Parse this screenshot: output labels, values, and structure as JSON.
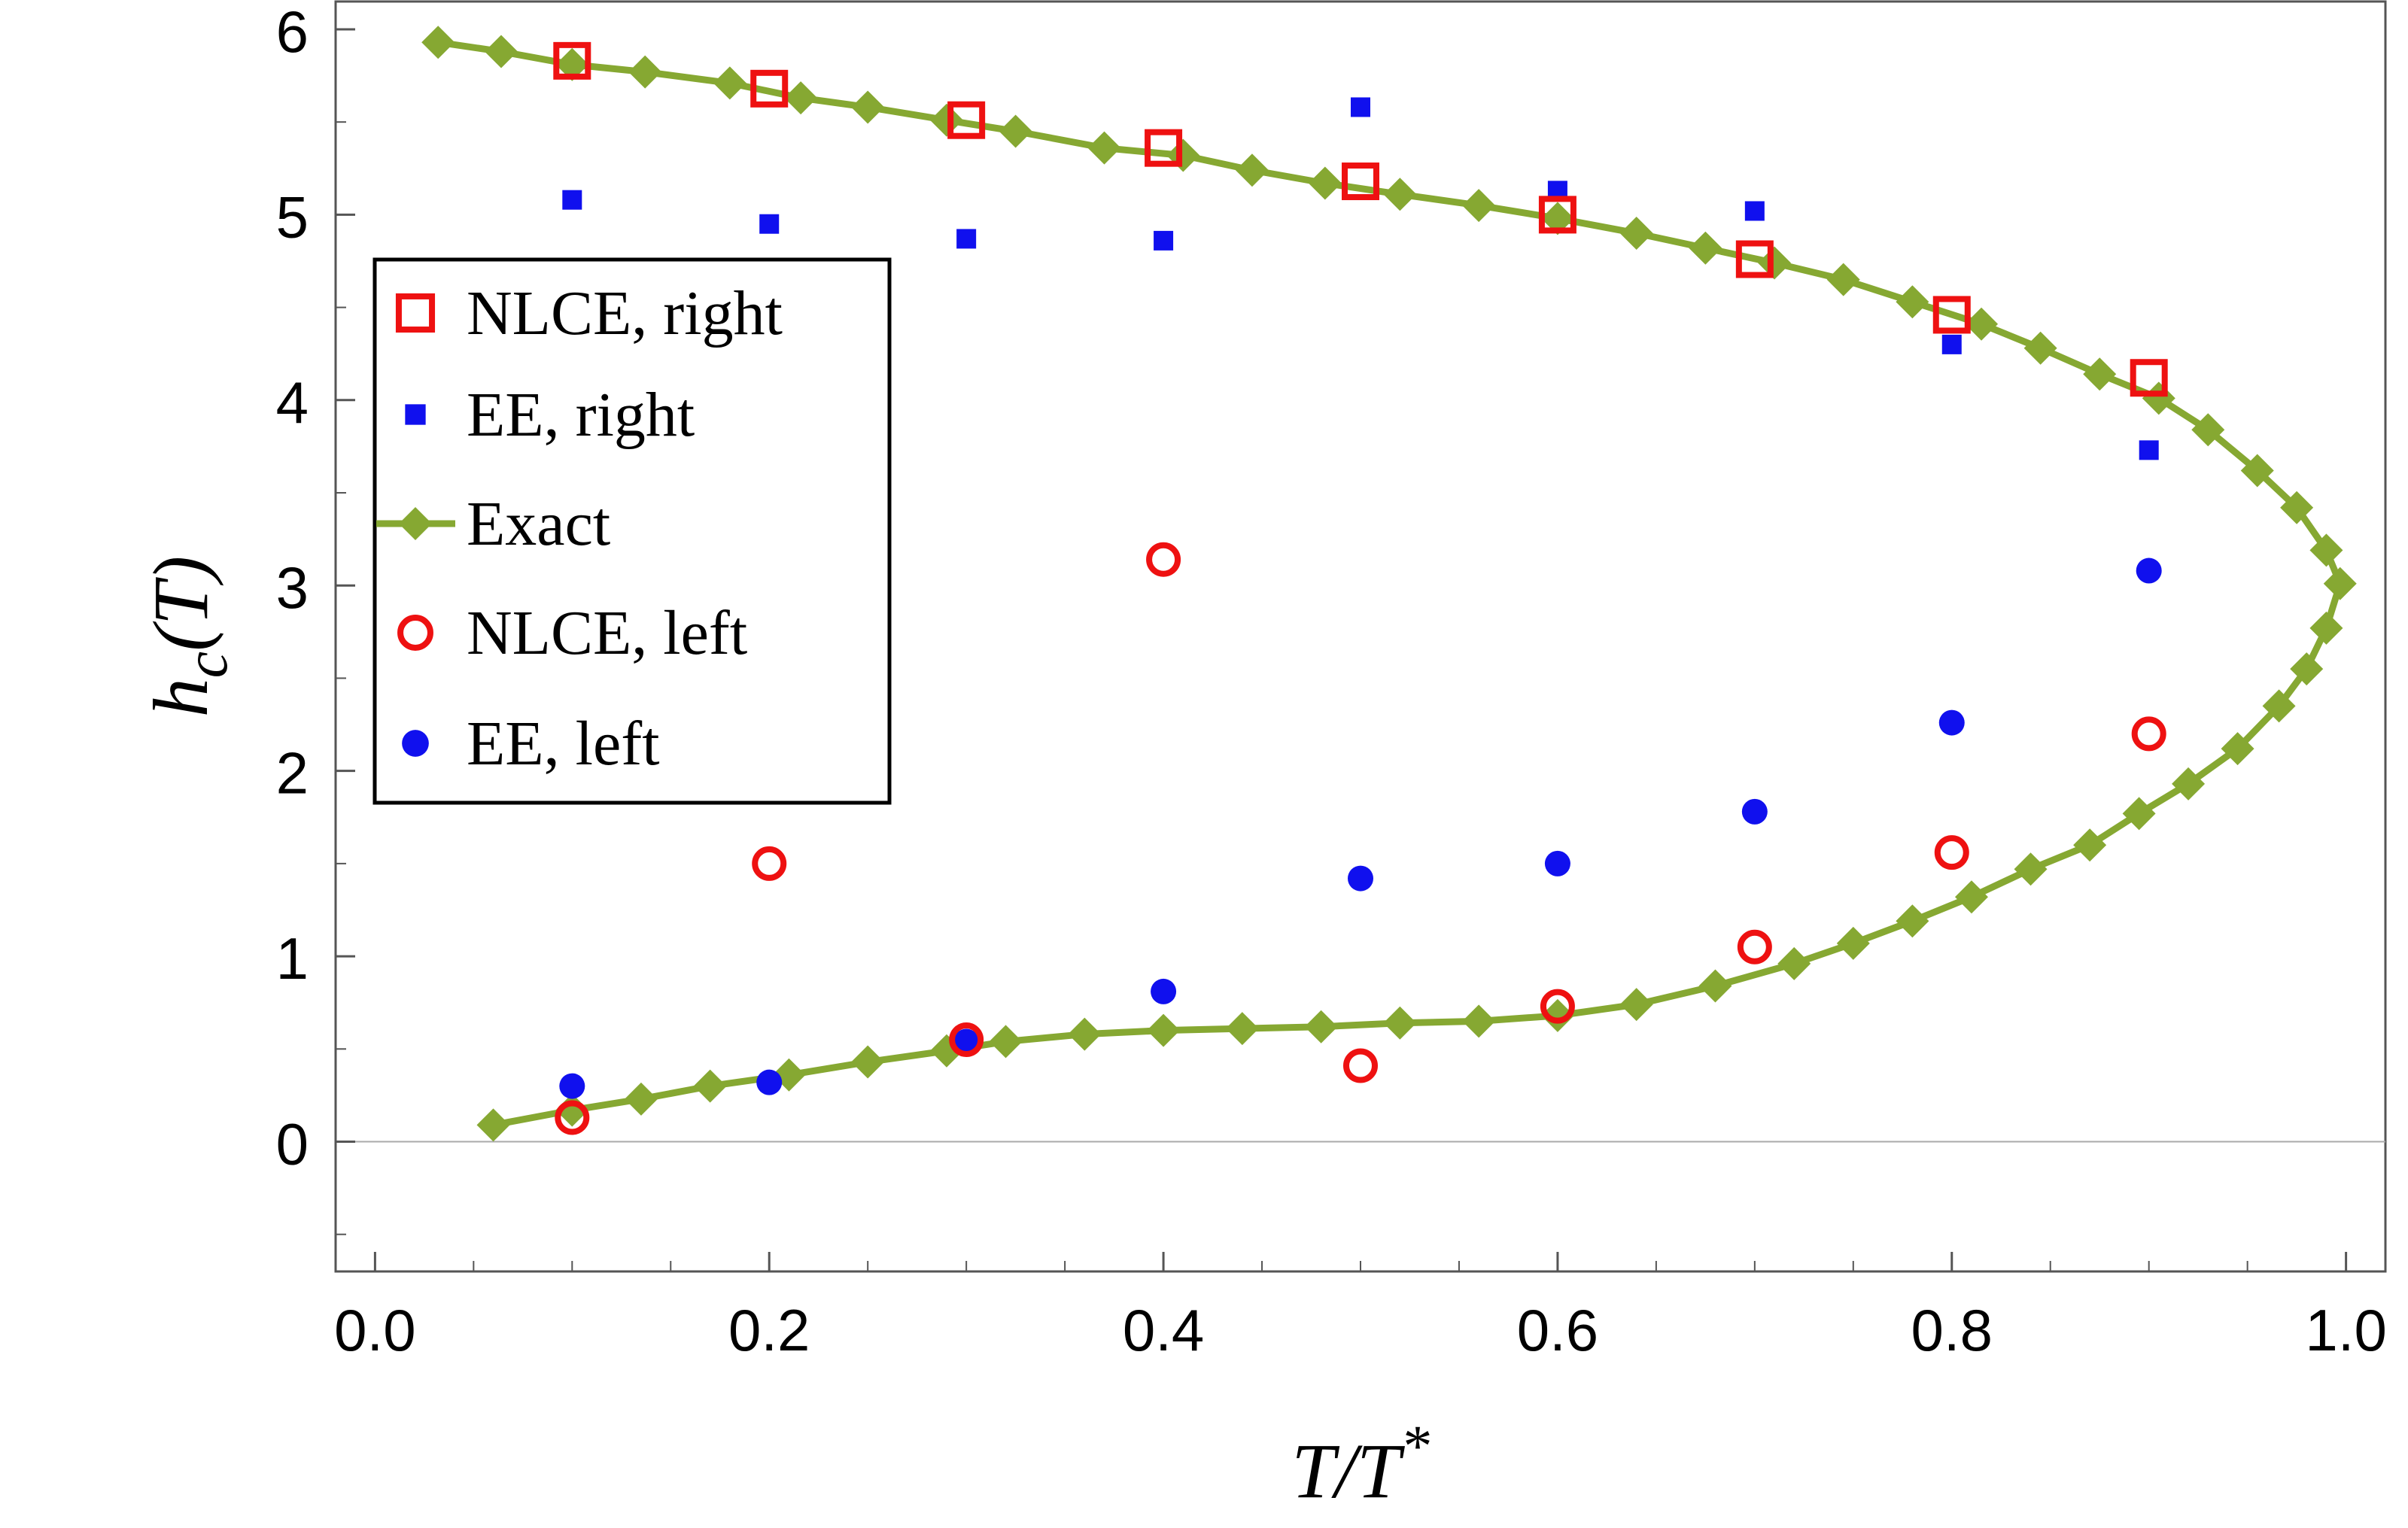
{
  "chart_data": {
    "type": "scatter",
    "xlabel": "T/T*",
    "ylabel": "h_c(T)",
    "xlim": [
      -0.02,
      1.02
    ],
    "ylim": [
      -0.7,
      6.15
    ],
    "x_ticks": [
      "0.0",
      "0.2",
      "0.4",
      "0.6",
      "0.8",
      "1.0"
    ],
    "y_ticks": [
      "0",
      "1",
      "2",
      "3",
      "4",
      "5",
      "6"
    ],
    "legend_position": "left",
    "colors": {
      "nlce": "#ee1111",
      "ee": "#1010ee",
      "exact": "#86a832"
    },
    "series": [
      {
        "name": "NLCE, right",
        "marker": "open-square",
        "x": [
          0.1,
          0.2,
          0.3,
          0.4,
          0.5,
          0.6,
          0.7,
          0.8,
          0.9
        ],
        "y": [
          5.83,
          5.68,
          5.51,
          5.36,
          5.18,
          5.0,
          4.76,
          4.46,
          4.12
        ]
      },
      {
        "name": "EE, right",
        "marker": "filled-square",
        "x": [
          0.1,
          0.2,
          0.3,
          0.4,
          0.5,
          0.6,
          0.7,
          0.8,
          0.9
        ],
        "y": [
          5.08,
          4.95,
          4.87,
          4.86,
          5.58,
          5.13,
          5.02,
          4.3,
          3.73
        ]
      },
      {
        "name": "Exact",
        "marker": "diamond-line",
        "x": [
          0.032,
          0.064,
          0.1,
          0.137,
          0.18,
          0.216,
          0.25,
          0.29,
          0.325,
          0.37,
          0.41,
          0.445,
          0.482,
          0.52,
          0.56,
          0.6,
          0.64,
          0.675,
          0.71,
          0.745,
          0.78,
          0.815,
          0.845,
          0.875,
          0.905,
          0.93,
          0.955,
          0.975,
          0.99,
          0.997,
          0.99,
          0.98,
          0.966,
          0.945,
          0.92,
          0.895,
          0.87,
          0.84,
          0.81,
          0.78,
          0.75,
          0.72,
          0.68,
          0.64,
          0.6,
          0.56,
          0.52,
          0.48,
          0.44,
          0.4,
          0.36,
          0.32,
          0.29,
          0.25,
          0.21,
          0.17,
          0.135,
          0.1,
          0.06
        ],
        "y": [
          5.93,
          5.88,
          5.81,
          5.77,
          5.71,
          5.63,
          5.58,
          5.51,
          5.45,
          5.36,
          5.32,
          5.24,
          5.17,
          5.11,
          5.05,
          4.98,
          4.9,
          4.82,
          4.74,
          4.65,
          4.53,
          4.41,
          4.28,
          4.14,
          4.01,
          3.84,
          3.62,
          3.42,
          3.19,
          3.01,
          2.77,
          2.55,
          2.35,
          2.12,
          1.93,
          1.77,
          1.6,
          1.47,
          1.32,
          1.19,
          1.07,
          0.96,
          0.84,
          0.74,
          0.68,
          0.65,
          0.64,
          0.62,
          0.61,
          0.6,
          0.58,
          0.54,
          0.49,
          0.43,
          0.36,
          0.3,
          0.23,
          0.17,
          0.09
        ]
      },
      {
        "name": "NLCE, left",
        "marker": "open-circle",
        "x": [
          0.1,
          0.2,
          0.3,
          0.4,
          0.5,
          0.6,
          0.7,
          0.8,
          0.9
        ],
        "y": [
          0.13,
          1.5,
          0.55,
          3.14,
          0.41,
          0.73,
          1.05,
          1.56,
          2.2
        ]
      },
      {
        "name": "EE, left",
        "marker": "filled-circle",
        "x": [
          0.1,
          0.2,
          0.3,
          0.4,
          0.5,
          0.6,
          0.7,
          0.8,
          0.9
        ],
        "y": [
          0.3,
          0.32,
          0.54,
          0.81,
          1.42,
          1.5,
          1.78,
          2.26,
          3.08
        ]
      }
    ]
  }
}
